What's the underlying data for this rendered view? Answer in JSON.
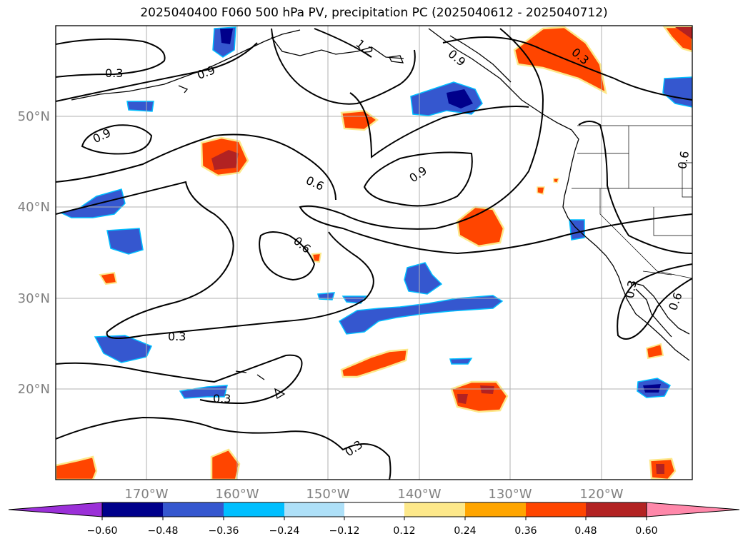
{
  "title": "2025040400 F060 500 hPa PV, precipitation PC (2025040612 - 2025040712)",
  "lon_labels": [
    "170°W",
    "160°W",
    "150°W",
    "140°W",
    "130°W",
    "120°W"
  ],
  "lat_labels": [
    "50°N",
    "40°N",
    "30°N",
    "20°N"
  ],
  "contour_labels": [
    "0.3",
    "0.9",
    "1.2",
    "0.9",
    "0.3",
    "0.9",
    "0.6",
    "0.9",
    "0.6",
    "0.3",
    "0.3",
    "0.3",
    "0.6",
    "0.6",
    "0.3",
    "0.6"
  ],
  "colorbar": {
    "ticks": [
      "−0.60",
      "−0.48",
      "−0.36",
      "−0.24",
      "−0.12",
      "0.12",
      "0.24",
      "0.36",
      "0.48",
      "0.60"
    ],
    "colors": [
      "#9b30d8",
      "#00008b",
      "#3557cf",
      "#00bfff",
      "#aee0f8",
      "#ffffff",
      "#fde88a",
      "#ffa500",
      "#ff4500",
      "#b22222",
      "#ff88aa"
    ]
  },
  "colors": {
    "grid": "#b0b0b0",
    "axis_label": "#808080",
    "neg_strong": "#00008b",
    "neg": "#3557cf",
    "neg_light": "#00bfff",
    "pos": "#ff4500",
    "pos_strong": "#b22222",
    "pos_light": "#ffa500",
    "pos_pale": "#fde88a"
  }
}
